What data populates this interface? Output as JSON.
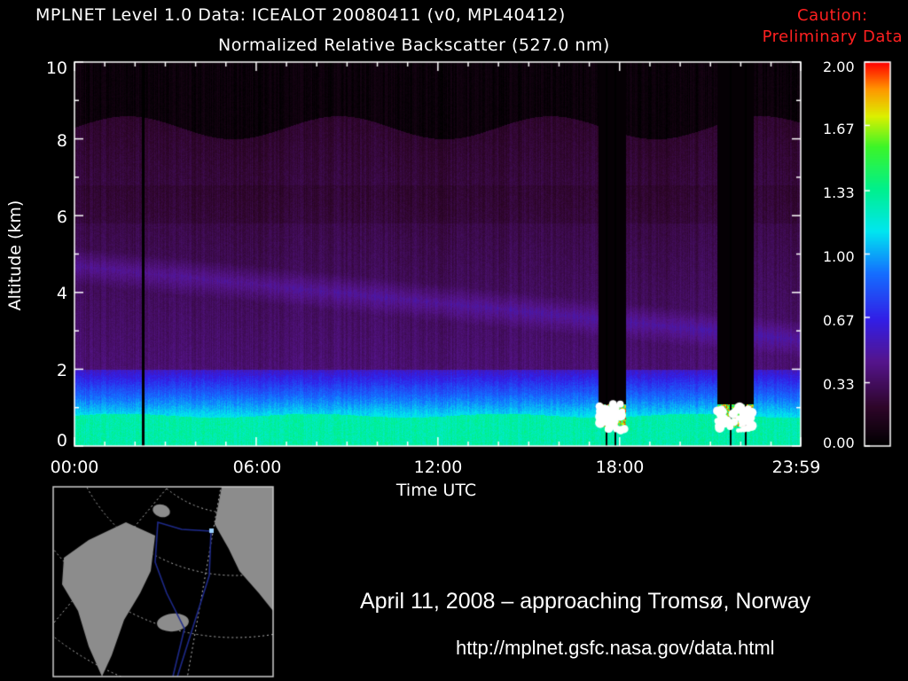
{
  "header": {
    "title_line1": "MPLNET Level 1.0 Data: ICEALOT 20080411 (v0, MPL40412)",
    "title_line2": "Normalized Relative Backscatter (527.0 nm)",
    "caution_line1": "Caution:",
    "caution_line2": "Preliminary Data"
  },
  "footer": {
    "caption": "April 11, 2008 – approaching Tromsø, Norway",
    "url": "http://mplnet.gsfc.nasa.gov/data.html"
  },
  "colors": {
    "background": "#000000",
    "caution_text": "#ff2020",
    "ship_track": "#1e2a8a",
    "land": "#8c8c8c"
  },
  "chart_data": {
    "type": "heatmap",
    "title": "MPLNET Level 1.0 Data: ICEALOT 20080411 (v0, MPL40412)",
    "subtitle": "Normalized Relative Backscatter (527.0 nm)",
    "xlabel": "Time UTC",
    "ylabel": "Altitude (km)",
    "x_ticks": [
      "00:00",
      "06:00",
      "12:00",
      "18:00",
      "23:59"
    ],
    "x_tick_hours": [
      0,
      6,
      12,
      18,
      23.98
    ],
    "xlim_hours": [
      0,
      23.98
    ],
    "y_ticks": [
      "0",
      "2",
      "4",
      "6",
      "8",
      "10"
    ],
    "ylim": [
      0,
      10
    ],
    "colorbar_ticks": [
      "2.00",
      "1.67",
      "1.33",
      "1.00",
      "0.67",
      "0.33",
      "0.00"
    ],
    "colorbar_range": [
      0,
      2
    ],
    "grid": false,
    "features": {
      "surface_layer_top_km": 0.8,
      "boundary_layer_top_km": 2.0,
      "aerosol_layer_km": [
        4.0,
        5.2
      ],
      "signal_top_km": 8.3,
      "data_gap_hours": [
        2.25,
        17.55,
        17.85,
        21.65,
        22.15
      ],
      "cloud_hours": [
        [
          17.3,
          18.2
        ],
        [
          21.2,
          22.4
        ]
      ]
    }
  },
  "map": {
    "description_labels": []
  }
}
